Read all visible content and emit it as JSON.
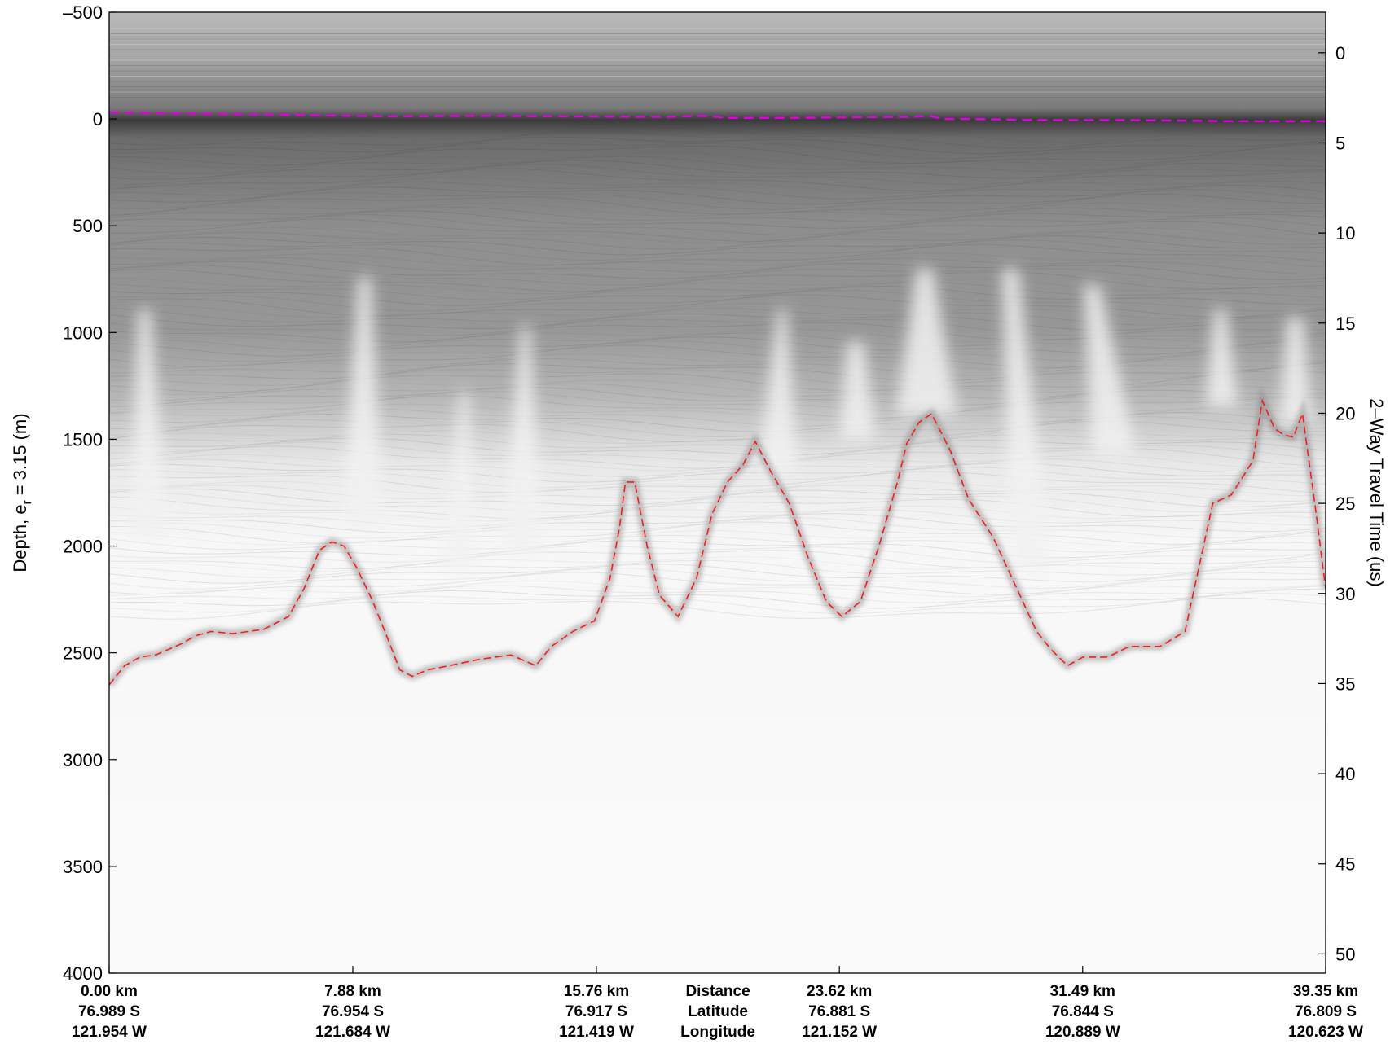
{
  "chart_data": {
    "type": "radargram",
    "ylabel_left_base": "Depth, e",
    "ylabel_left_sub": "r",
    "ylabel_left_rest": " = 3.15 (m)",
    "ylabel_right": "2–Way Travel Time (us)",
    "left_axis": {
      "ylim": [
        -500,
        4000
      ],
      "ticks": [
        -500,
        0,
        500,
        1000,
        1500,
        2000,
        2500,
        3000,
        3500,
        4000
      ],
      "tick_labels": [
        "–500",
        "0",
        "500",
        "1000",
        "1500",
        "2000",
        "2500",
        "3000",
        "3500",
        "4000"
      ]
    },
    "right_axis": {
      "ticks": [
        0,
        5,
        10,
        15,
        20,
        25,
        30,
        35,
        40,
        45,
        50
      ],
      "tick_labels": [
        "0",
        "5",
        "10",
        "15",
        "20",
        "25",
        "30",
        "35",
        "40",
        "45",
        "50"
      ],
      "depth_at_zero_us": -310,
      "depth_per_us": 84.4
    },
    "xlim_km": [
      0,
      39.35
    ],
    "x_ticks": [
      {
        "km": 0.0,
        "distance": "0.00 km",
        "latitude": "76.989 S",
        "longitude": "121.954 W"
      },
      {
        "km": 7.88,
        "distance": "7.88 km",
        "latitude": "76.954 S",
        "longitude": "121.684 W"
      },
      {
        "km": 15.76,
        "distance": "15.76 km",
        "latitude": "76.917 S",
        "longitude": "121.419 W"
      },
      {
        "km": 23.62,
        "distance": "23.62 km",
        "latitude": "76.881 S",
        "longitude": "121.152 W"
      },
      {
        "km": 31.49,
        "distance": "31.49 km",
        "latitude": "76.844 S",
        "longitude": "120.889 W"
      },
      {
        "km": 39.35,
        "distance": "39.35 km",
        "latitude": "76.809 S",
        "longitude": "120.623 W"
      }
    ],
    "row_titles": {
      "distance": "Distance",
      "latitude": "Latitude",
      "longitude": "Longitude"
    },
    "row_titles_km": 19.69,
    "surface_pick": {
      "color": "#e000e0",
      "style": "dashed",
      "x_km": [
        0,
        3,
        6,
        9,
        12,
        15,
        18,
        19.3,
        20,
        22,
        24,
        26,
        26.5,
        27,
        28,
        30,
        33,
        36,
        39.35
      ],
      "depth_m": [
        -30,
        -25,
        -20,
        -12,
        -15,
        -12,
        -10,
        -15,
        -5,
        -5,
        -8,
        -10,
        -15,
        0,
        0,
        5,
        5,
        10,
        10
      ]
    },
    "bed_pick": {
      "color": "#ff0000",
      "style": "dashed",
      "x_km": [
        0,
        0.5,
        1.0,
        1.5,
        2.3,
        2.8,
        3.3,
        4.0,
        5.0,
        5.8,
        6.3,
        6.8,
        7.2,
        7.6,
        8.0,
        8.5,
        9.0,
        9.4,
        9.8,
        10.3,
        11.0,
        12.0,
        13.0,
        13.8,
        14.3,
        15.0,
        15.7,
        16.2,
        16.5,
        16.7,
        17.0,
        17.4,
        17.8,
        18.4,
        19.0,
        19.5,
        20.0,
        20.5,
        20.9,
        21.4,
        22.0,
        22.6,
        23.2,
        23.7,
        24.3,
        24.9,
        25.5,
        25.8,
        26.2,
        26.6,
        27.2,
        27.8,
        28.6,
        29.3,
        30.0,
        30.5,
        31.0,
        31.5,
        32.3,
        33.0,
        34.0,
        34.8,
        35.4,
        35.7,
        36.3,
        37.0,
        37.3,
        37.7,
        38.0,
        38.3,
        38.6,
        39.0,
        39.35
      ],
      "depth_m": [
        2650,
        2560,
        2520,
        2510,
        2460,
        2420,
        2400,
        2410,
        2390,
        2330,
        2200,
        2020,
        1980,
        2000,
        2100,
        2250,
        2430,
        2580,
        2610,
        2580,
        2560,
        2530,
        2510,
        2560,
        2470,
        2400,
        2350,
        2150,
        1920,
        1700,
        1700,
        2000,
        2230,
        2330,
        2150,
        1850,
        1700,
        1620,
        1510,
        1650,
        1800,
        2050,
        2260,
        2330,
        2260,
        2000,
        1700,
        1520,
        1420,
        1380,
        1550,
        1780,
        1960,
        2180,
        2400,
        2490,
        2560,
        2520,
        2520,
        2470,
        2470,
        2400,
        2000,
        1800,
        1760,
        1600,
        1320,
        1450,
        1480,
        1490,
        1380,
        1800,
        2200
      ]
    }
  }
}
